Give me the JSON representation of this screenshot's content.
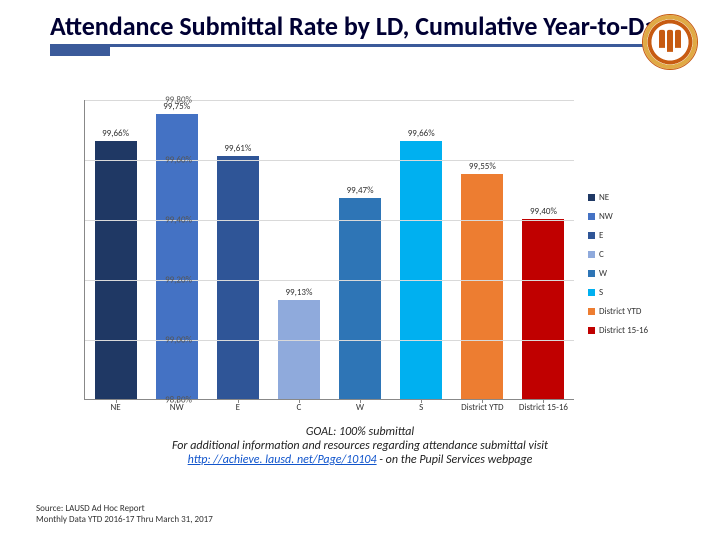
{
  "title": "Attendance Submittal Rate by LD, Cumulative Year-to-Date",
  "logo": {
    "name": "district-seal"
  },
  "chart": {
    "type": "bar",
    "ylim": [
      98.8,
      99.8
    ],
    "ytick_step": 0.2,
    "yticks": [
      {
        "v": 98.8,
        "label": "98,80%"
      },
      {
        "v": 99.0,
        "label": "99,00%"
      },
      {
        "v": 99.2,
        "label": "99,20%"
      },
      {
        "v": 99.4,
        "label": "99,40%"
      },
      {
        "v": 99.6,
        "label": "99,60%"
      },
      {
        "v": 99.8,
        "label": "99,80%"
      }
    ],
    "grid_color": "#d9d9d9",
    "background_color": "#ffffff",
    "series": [
      {
        "key": "NE",
        "xlabel": "NE",
        "value": 99.66,
        "label": "99,66%",
        "color": "#1f3864"
      },
      {
        "key": "NW",
        "xlabel": "NW",
        "value": 99.75,
        "label": "99,75%",
        "color": "#4472c4"
      },
      {
        "key": "E",
        "xlabel": "E",
        "value": 99.61,
        "label": "99,61%",
        "color": "#2f5597"
      },
      {
        "key": "C",
        "xlabel": "C",
        "value": 99.13,
        "label": "99,13%",
        "color": "#8faadc"
      },
      {
        "key": "W",
        "xlabel": "W",
        "value": 99.47,
        "label": "99,47%",
        "color": "#2e75b6"
      },
      {
        "key": "S",
        "xlabel": "S",
        "value": 99.66,
        "label": "99,66%",
        "color": "#00b0f0"
      },
      {
        "key": "DistrictYTD",
        "xlabel": "District YTD",
        "value": 99.55,
        "label": "99,55%",
        "color": "#ed7d31"
      },
      {
        "key": "District1516",
        "xlabel": "District 15-16",
        "value": 99.4,
        "label": "99,40%",
        "color": "#c00000"
      }
    ],
    "legend": [
      {
        "label": "NE",
        "color": "#1f3864"
      },
      {
        "label": "NW",
        "color": "#4472c4"
      },
      {
        "label": "E",
        "color": "#2f5597"
      },
      {
        "label": "C",
        "color": "#8faadc"
      },
      {
        "label": "W",
        "color": "#2e75b6"
      },
      {
        "label": "S",
        "color": "#00b0f0"
      },
      {
        "label": "District YTD",
        "color": "#ed7d31"
      },
      {
        "label": "District 15-16",
        "color": "#c00000"
      }
    ]
  },
  "footer": {
    "goal": "GOAL:  100% submittal",
    "line2_pre": "For additional information and resources regarding attendance submittal visit ",
    "link_text": "http: //achieve. lausd. net/Page/10104",
    "line2_post": "  - on the Pupil Services webpage"
  },
  "source": {
    "line1": "Source: LAUSD Ad Hoc Report",
    "line2": "Monthly Data YTD 2016-17 Thru March 31, 2017"
  }
}
